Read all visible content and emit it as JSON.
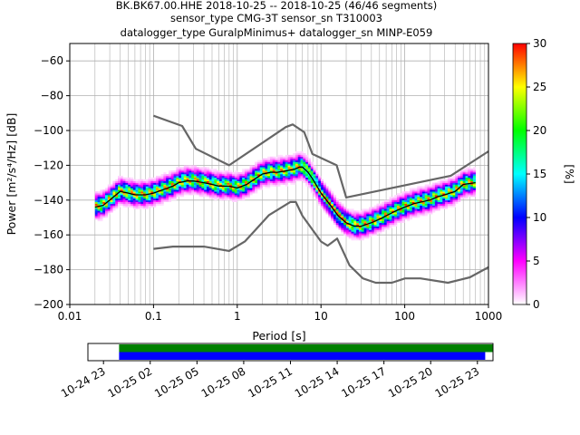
{
  "title": {
    "line1": "BK.BK67.00.HHE   2018-10-25 -- 2018-10-25  (46/46 segments)",
    "line2": "sensor_type CMG-3T sensor_sn T310003",
    "line3": "datalogger_type GuralpMinimus+ datalogger_sn MINP-E059"
  },
  "chart_data": [
    {
      "type": "heatmap",
      "subtype": "probabilistic-power-spectral-density",
      "xlabel": "Period [s]",
      "ylabel": "Power [m²/s⁴/Hz] [dB]",
      "x_scale": "log",
      "xlim": [
        0.01,
        1000
      ],
      "ylim": [
        -200,
        -50
      ],
      "x_ticks": [
        0.01,
        0.1,
        1,
        10,
        100,
        1000
      ],
      "x_tick_labels": [
        "0.01",
        "0.1",
        "1",
        "10",
        "100",
        "1000"
      ],
      "y_ticks": [
        -200,
        -180,
        -160,
        -140,
        -120,
        -100,
        -80,
        -60
      ],
      "y_tick_labels": [
        "−200",
        "−180",
        "−160",
        "−140",
        "−120",
        "−100",
        "−80",
        "−60"
      ],
      "grid": true,
      "colorbar": {
        "label": "[%]",
        "range": [
          0,
          30
        ],
        "ticks": [
          0,
          5,
          10,
          15,
          20,
          25,
          30
        ],
        "colormap": [
          "#ffffff",
          "#ff00ff",
          "#0000ff",
          "#00ffff",
          "#00ff00",
          "#ffff00",
          "#ff0000"
        ]
      },
      "mean_curve": {
        "period": [
          0.02,
          0.025,
          0.03,
          0.04,
          0.05,
          0.06,
          0.08,
          0.1,
          0.13,
          0.17,
          0.2,
          0.25,
          0.3,
          0.4,
          0.5,
          0.6,
          0.8,
          1.0,
          1.3,
          1.6,
          2.0,
          2.5,
          3.0,
          4.0,
          5.0,
          5.5,
          6.0,
          7.0,
          8.0,
          10,
          13,
          16,
          20,
          25,
          30,
          40,
          50,
          60,
          80,
          100,
          130,
          160,
          200,
          250,
          300,
          400,
          500,
          700
        ],
        "power": [
          -144,
          -143,
          -140,
          -135,
          -136,
          -137,
          -137,
          -136,
          -134,
          -132,
          -130,
          -129,
          -129,
          -130,
          -131,
          -132,
          -132,
          -133,
          -131,
          -128,
          -125,
          -124,
          -124,
          -123,
          -122,
          -121,
          -121,
          -124,
          -128,
          -136,
          -143,
          -149,
          -153,
          -155,
          -155,
          -153,
          -151,
          -149,
          -146,
          -144,
          -142,
          -141,
          -140,
          -138,
          -137,
          -135,
          -131,
          -130
        ]
      },
      "noise_models": [
        {
          "name": "NHNM",
          "period": [
            0.1,
            0.22,
            0.32,
            0.8,
            3.8,
            4.6,
            6.3,
            7.9,
            15.4,
            20,
            354.8,
            1000
          ],
          "power": [
            -91.5,
            -97.4,
            -110.5,
            -120,
            -98,
            -96.5,
            -101,
            -113.5,
            -120,
            -138.5,
            -126,
            -112
          ]
        },
        {
          "name": "NLNM",
          "period": [
            0.1,
            0.17,
            0.4,
            0.8,
            1.24,
            2.4,
            4.3,
            5.0,
            6.0,
            10,
            12,
            15.6,
            21.9,
            31.6,
            45,
            70,
            101,
            154,
            328,
            600,
            1000
          ],
          "power": [
            -168,
            -166.7,
            -166.7,
            -169.2,
            -163.7,
            -148.6,
            -141.1,
            -141.1,
            -149,
            -163.8,
            -166.2,
            -162.1,
            -177.5,
            -185,
            -187.5,
            -187.5,
            -185,
            -185,
            -187.5,
            -184.4,
            -178.6
          ]
        }
      ]
    },
    {
      "type": "timeline",
      "x_ticks": [
        "10-24 23",
        "10-25 02",
        "10-25 05",
        "10-25 08",
        "10-25 11",
        "10-25 14",
        "10-25 17",
        "10-25 20",
        "10-25 23"
      ],
      "xlim": [
        "2018-10-24 22:00",
        "2018-10-26 00:00"
      ],
      "coverage": [
        {
          "name": "data",
          "start": "2018-10-25 00:00",
          "end": "2018-10-25 23:59",
          "color": "#008000"
        },
        {
          "name": "used",
          "start": "2018-10-25 00:00",
          "end": "2018-10-25 23:30",
          "color": "#0000ff"
        }
      ]
    }
  ]
}
